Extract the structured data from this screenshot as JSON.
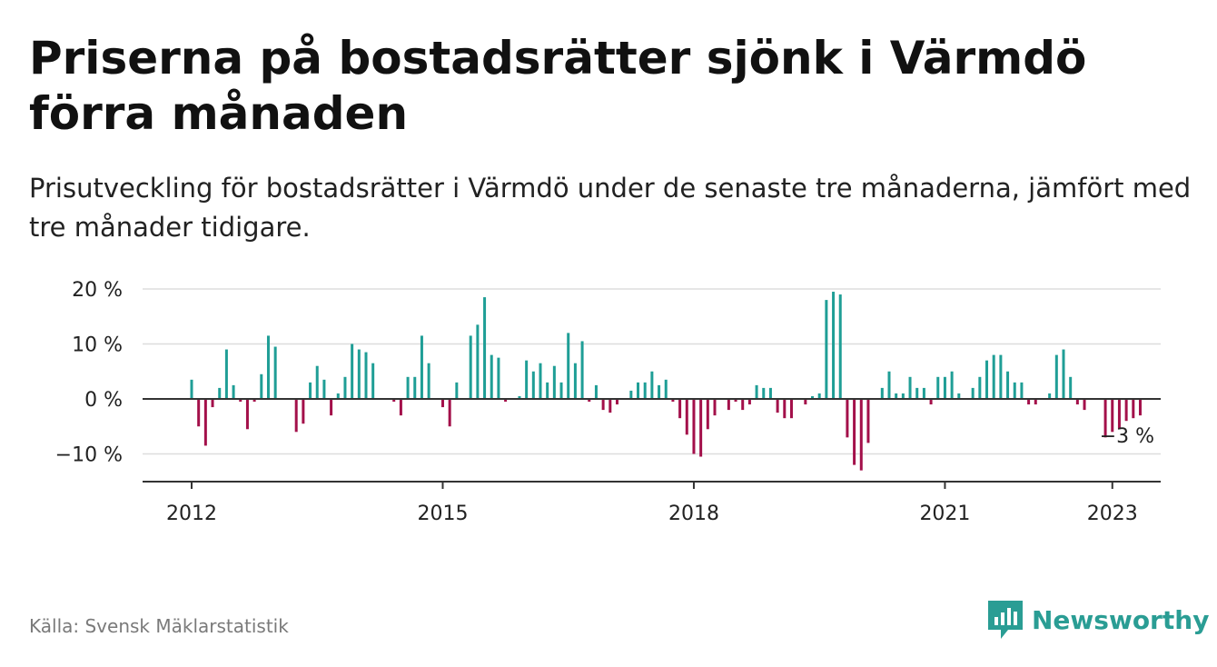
{
  "title": "Priserna på bostadsrätter sjönk i Värmdö förra månaden",
  "subtitle": "Prisutveckling för bostadsrätter i Värmdö under de senaste tre månaderna, jämfört med tre månader tidigare.",
  "source": "Källa: Svensk Mäklarstatistik",
  "brand": {
    "name": "Newsworthy",
    "icon": "newsworthy-logo-icon"
  },
  "colors": {
    "positive": "#1f9e96",
    "negative": "#a3104a",
    "axis": "#333333",
    "grid": "#dddddd",
    "brand": "#2a9d94"
  },
  "chart_data": {
    "type": "bar",
    "title": "Priserna på bostadsrätter sjönk i Värmdö förra månaden",
    "xlabel": "",
    "ylabel": "",
    "x_start": "2012-01",
    "unit": "%",
    "ylim": [
      -15,
      20
    ],
    "yticks": [
      20,
      10,
      0,
      -10
    ],
    "ytick_labels": [
      "20 %",
      "10 %",
      "0 %",
      "−10 %"
    ],
    "xticks": [
      2012,
      2015,
      2018,
      2021,
      2023
    ],
    "grid": true,
    "annotation": {
      "text": "−3 %",
      "month": "2023-01"
    },
    "values": [
      3.5,
      -5,
      -8.5,
      -1.5,
      2,
      9,
      2.5,
      -0.5,
      -5.5,
      -0.5,
      4.5,
      11.5,
      9.5,
      0,
      0,
      -6,
      -4.5,
      3,
      6,
      3.5,
      -3,
      1,
      4,
      10,
      9,
      8.5,
      6.5,
      0,
      0,
      -0.5,
      -3,
      4,
      4,
      11.5,
      6.5,
      0,
      -1.5,
      -5,
      3,
      0,
      11.5,
      13.5,
      18.5,
      8,
      7.5,
      -0.5,
      0,
      0.5,
      7,
      5,
      6.5,
      3,
      6,
      3,
      12,
      6.5,
      10.5,
      -0.5,
      2.5,
      -2,
      -2.5,
      -1,
      0,
      1.5,
      3,
      3,
      5,
      2.5,
      3.5,
      -0.5,
      -3.5,
      -6.5,
      -10,
      -10.5,
      -5.5,
      -3,
      0,
      -2,
      -0.5,
      -2,
      -1,
      2.5,
      2,
      2,
      -2.5,
      -3.5,
      -3.5,
      0,
      -1,
      0.5,
      1,
      18,
      19.5,
      19,
      -7,
      -12,
      -13,
      -8,
      0,
      2,
      5,
      1,
      1,
      4,
      2,
      2,
      -1,
      4,
      4,
      5,
      1,
      0,
      2,
      4,
      7,
      8,
      8,
      5,
      3,
      3,
      -1,
      -1,
      0,
      1,
      8,
      9,
      4,
      -1,
      -2,
      0,
      0,
      -7,
      -6,
      -5.5,
      -4,
      -3.5,
      -3
    ]
  }
}
